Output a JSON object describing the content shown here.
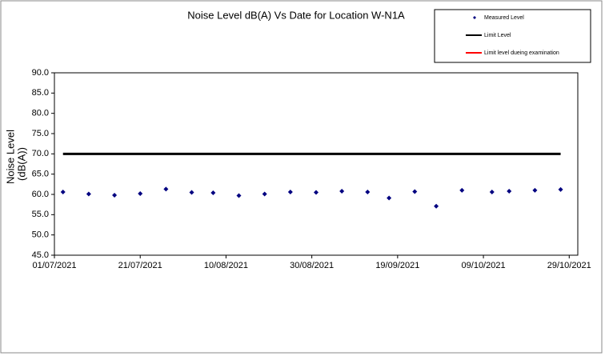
{
  "chart_data": {
    "type": "scatter",
    "title": "Noise Level dB(A) Vs Date for Location W-N1A",
    "ylabel": [
      "Noise Level",
      "(dB(A))"
    ],
    "xlim": [
      "01/07/2021",
      "31/10/2021"
    ],
    "xticks": [
      "01/07/2021",
      "21/07/2021",
      "10/08/2021",
      "30/08/2021",
      "19/09/2021",
      "09/10/2021",
      "29/10/2021"
    ],
    "ylim": [
      45,
      90
    ],
    "yticks": [
      {
        "value": 45,
        "label": "45.0"
      },
      {
        "value": 50,
        "label": "50.0"
      },
      {
        "value": 55,
        "label": "55.0"
      },
      {
        "value": 60,
        "label": "60.0"
      },
      {
        "value": 65,
        "label": "65.0"
      },
      {
        "value": 70,
        "label": "70.0"
      },
      {
        "value": 75,
        "label": "75.0"
      },
      {
        "value": 80,
        "label": "80.0"
      },
      {
        "value": 85,
        "label": "85.0"
      },
      {
        "value": 90,
        "label": "90.0"
      }
    ],
    "series": [
      {
        "name": "Measured Level",
        "color": "#000080",
        "mode": "markers",
        "x": [
          "03/07/2021",
          "09/07/2021",
          "15/07/2021",
          "21/07/2021",
          "27/07/2021",
          "02/08/2021",
          "07/08/2021",
          "13/08/2021",
          "19/08/2021",
          "25/08/2021",
          "31/08/2021",
          "06/09/2021",
          "12/09/2021",
          "17/09/2021",
          "23/09/2021",
          "28/09/2021",
          "04/10/2021",
          "11/10/2021",
          "15/10/2021",
          "21/10/2021",
          "27/10/2021"
        ],
        "values": [
          60.6,
          60.1,
          59.8,
          60.2,
          61.3,
          60.5,
          60.4,
          59.7,
          60.1,
          60.6,
          60.5,
          60.8,
          60.6,
          59.1,
          60.7,
          57.1,
          61.0,
          60.6,
          60.8,
          61.0,
          61.2
        ]
      },
      {
        "name": "Limit Level",
        "color": "#000000",
        "mode": "line",
        "x": [
          "03/07/2021",
          "27/10/2021"
        ],
        "values": [
          70,
          70
        ]
      },
      {
        "name": "Limit level dueing examination",
        "color": "#ff0000",
        "mode": "line",
        "x": [],
        "values": []
      }
    ]
  }
}
